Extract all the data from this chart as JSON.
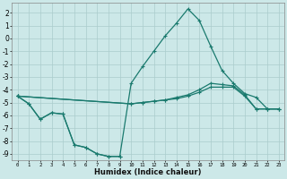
{
  "xlabel": "Humidex (Indice chaleur)",
  "background_color": "#cce8e8",
  "grid_color": "#aacccc",
  "line_color": "#1a7a6e",
  "xlim": [
    -0.5,
    23.5
  ],
  "ylim": [
    -9.5,
    2.8
  ],
  "yticks": [
    2,
    1,
    0,
    -1,
    -2,
    -3,
    -4,
    -5,
    -6,
    -7,
    -8,
    -9
  ],
  "xticks": [
    0,
    1,
    2,
    3,
    4,
    5,
    6,
    7,
    8,
    9,
    10,
    11,
    12,
    13,
    14,
    15,
    16,
    17,
    18,
    19,
    20,
    21,
    22,
    23
  ],
  "series1_x": [
    0,
    1,
    2,
    3,
    4,
    5,
    6,
    7,
    8,
    9
  ],
  "series1_y": [
    -4.5,
    -5.1,
    -6.3,
    -5.8,
    -5.9,
    -8.3,
    -8.5,
    -9.0,
    -9.2,
    -9.2
  ],
  "series2_x": [
    0,
    1,
    2,
    3,
    4,
    5,
    6,
    7,
    8,
    9,
    10,
    11,
    12,
    13,
    14,
    15,
    16,
    17,
    18,
    19,
    20,
    21,
    22,
    23
  ],
  "series2_y": [
    -4.5,
    -5.1,
    -6.3,
    -5.8,
    -5.9,
    -8.3,
    -8.5,
    -9.0,
    -9.2,
    -9.2,
    -3.5,
    -2.2,
    -1.0,
    0.2,
    1.2,
    2.3,
    1.4,
    -0.6,
    -2.5,
    -3.5,
    -4.3,
    -4.6,
    -5.5,
    -5.5
  ],
  "series3_x": [
    0,
    10,
    11,
    12,
    13,
    14,
    15,
    16,
    17,
    18,
    19,
    20,
    21,
    22,
    23
  ],
  "series3_y": [
    -4.5,
    -5.1,
    -5.0,
    -4.9,
    -4.8,
    -4.6,
    -4.4,
    -4.0,
    -3.5,
    -3.6,
    -3.7,
    -4.4,
    -5.5,
    -5.5,
    -5.5
  ],
  "series4_x": [
    0,
    10,
    11,
    12,
    13,
    14,
    15,
    16,
    17,
    18,
    19,
    20,
    21,
    22,
    23
  ],
  "series4_y": [
    -4.5,
    -5.1,
    -5.0,
    -4.9,
    -4.8,
    -4.7,
    -4.5,
    -4.2,
    -3.8,
    -3.8,
    -3.8,
    -4.5,
    -5.5,
    -5.5,
    -5.5
  ]
}
